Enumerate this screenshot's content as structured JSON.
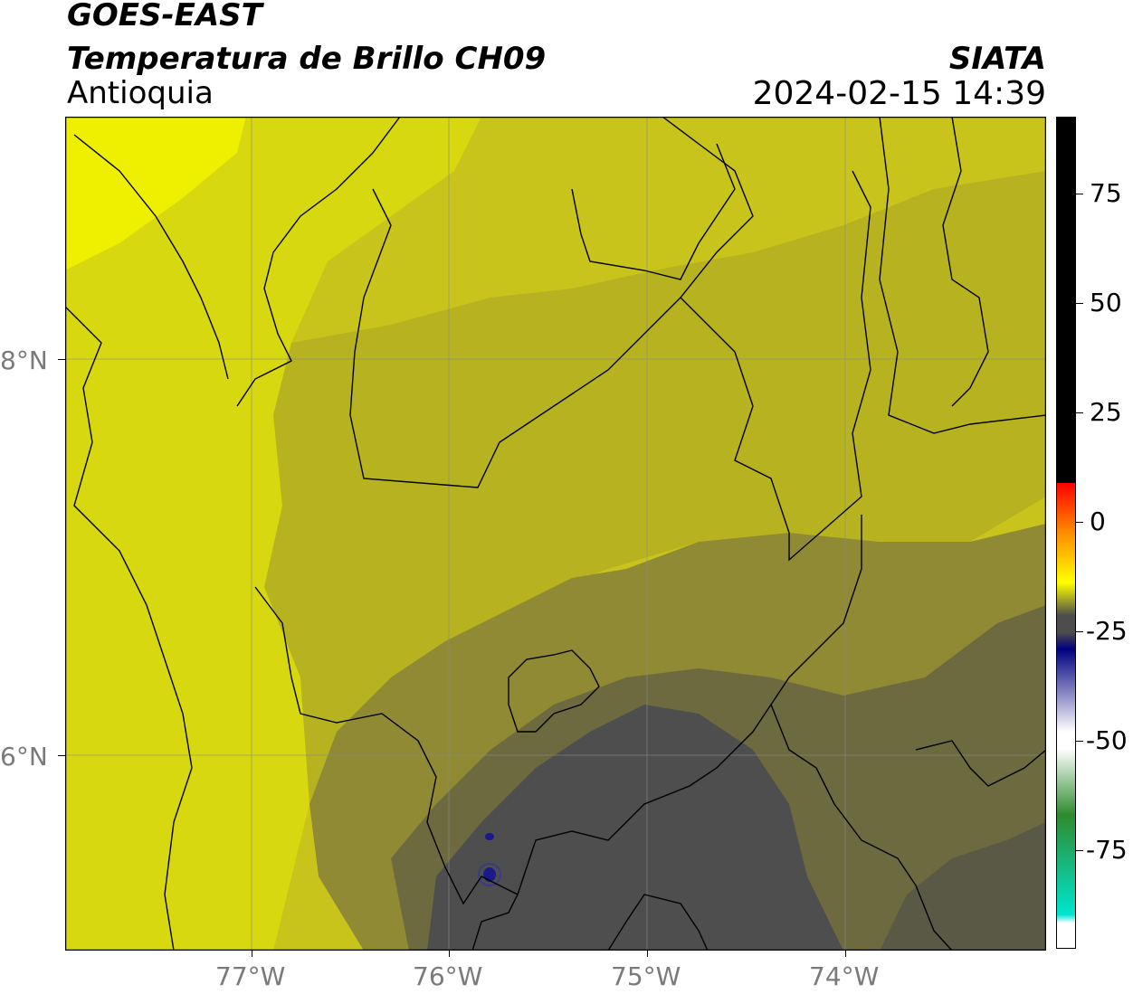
{
  "header": {
    "title_line1": "GOES-EAST",
    "title_line2": "Temperatura de Brillo CH09",
    "region": "Antioquia",
    "agency": "SIATA",
    "datetime": "2024-02-15 14:39"
  },
  "axes": {
    "x_labels": [
      "77°W",
      "76°W",
      "75°W",
      "74°W"
    ],
    "y_labels": [
      "8°N",
      "6°N"
    ]
  },
  "colorbar": {
    "labels": [
      "75",
      "50",
      "25",
      "0",
      "-25",
      "-50",
      "-75"
    ],
    "colors": {
      "black_band": "#000000",
      "red": "#ff0000",
      "orange": "#ff8c00",
      "yellow": "#ffff00",
      "gray": "#4d4d4d",
      "navy": "#000080",
      "white": "#ffffff",
      "green": "#2e8b2e",
      "cyan": "#00e5d0"
    }
  },
  "map_colors": {
    "bright_yellow": "#eef000",
    "yellow": "#d6d612",
    "olive_light": "#c4c018",
    "olive": "#a8a428",
    "olive_dark": "#857f3a",
    "gray_olive": "#66633f",
    "dark_gray": "#4e4e4e",
    "blue_spot": "#1a1a8c"
  }
}
